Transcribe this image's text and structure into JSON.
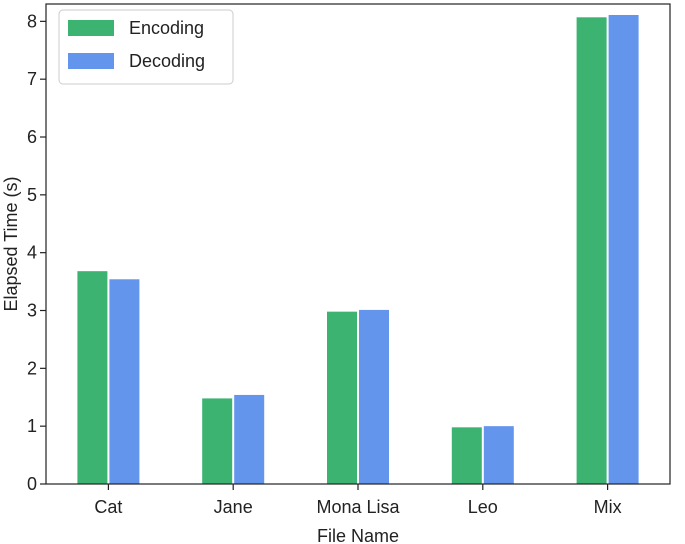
{
  "chart_data": {
    "type": "bar",
    "title": "",
    "xlabel": "File Name",
    "ylabel": "Elapsed Time (s)",
    "categories": [
      "Cat",
      "Jane",
      "Mona Lisa",
      "Leo",
      "Mix"
    ],
    "series": [
      {
        "name": "Encoding",
        "color": "#3cb371",
        "values": [
          3.68,
          1.48,
          2.98,
          0.98,
          8.07
        ]
      },
      {
        "name": "Decoding",
        "color": "#6495ed",
        "values": [
          3.54,
          1.54,
          3.01,
          1.0,
          8.11
        ]
      }
    ],
    "ylim": [
      0,
      8.3
    ],
    "yticks": [
      0,
      1,
      2,
      3,
      4,
      5,
      6,
      7,
      8
    ],
    "grid": false,
    "legend_position": "top-left"
  }
}
